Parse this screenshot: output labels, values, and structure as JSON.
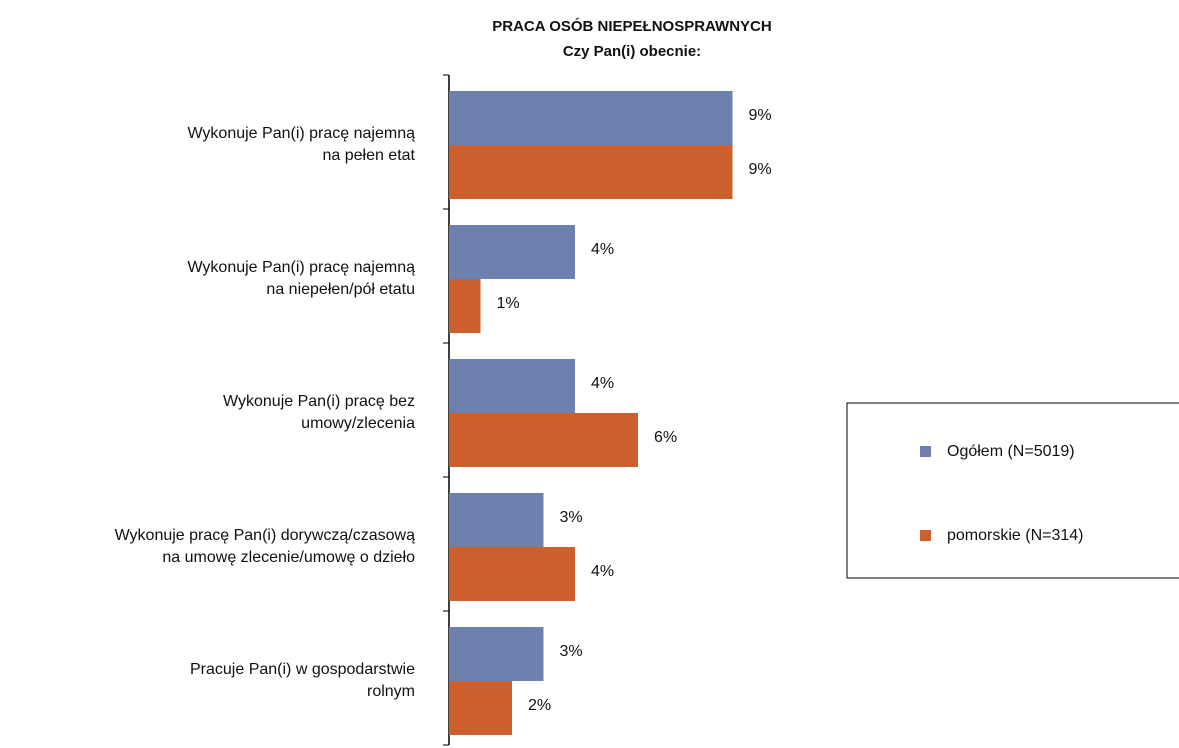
{
  "chart_data": {
    "type": "bar",
    "orientation": "horizontal",
    "title": "PRACA OSÓB NIEPEŁNOSPRAWNYCH",
    "subtitle": "Czy Pan(i) obecnie:",
    "categories": [
      "Wykonuje Pan(i) pracę najemną\nna pełen etat",
      "Wykonuje Pan(i) pracę najemną\nna niepełen/pół etatu",
      "Wykonuje Pan(i) pracę bez\numowy/zlecenia",
      "Wykonuje pracę Pan(i) dorywczą/czasową\nna umowę zlecenie/umowę o dzieło",
      "Pracuje Pan(i) w gospodarstwie\nrolnym"
    ],
    "series": [
      {
        "name": "Ogółem (N=5019)",
        "color": "#6e80ad",
        "values": [
          9,
          4,
          4,
          3,
          3
        ],
        "value_labels": [
          "9%",
          "4%",
          "4%",
          "3%",
          "3%"
        ]
      },
      {
        "name": "pomorskie  (N=314)",
        "color": "#cc5f2e",
        "values": [
          9,
          1,
          6,
          4,
          2
        ],
        "value_labels": [
          "9%",
          "1%",
          "6%",
          "4%",
          "2%"
        ]
      }
    ],
    "legend": "right"
  }
}
